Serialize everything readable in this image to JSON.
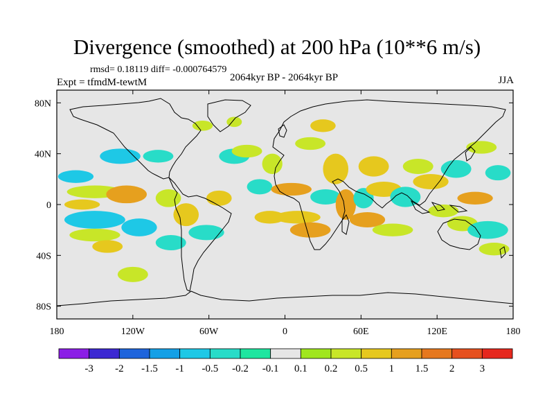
{
  "title": "Divergence (smoothed) at 200 hPa (10**6 m/s)",
  "stats": "rmsd= 0.18119 diff= -0.000764579",
  "experiment": "Expt = tfmdM-tewtM",
  "period": "2064kyr BP - 2064kyr BP",
  "season": "JJA",
  "map": {
    "projection": "cylindrical-equidistant",
    "lon_range": [
      -180,
      180
    ],
    "lat_range": [
      -90,
      90
    ],
    "background_color": "#e6e6e6",
    "x_ticks": [
      {
        "lon": -180,
        "label": "180"
      },
      {
        "lon": -120,
        "label": "120W"
      },
      {
        "lon": -60,
        "label": "60W"
      },
      {
        "lon": 0,
        "label": "0"
      },
      {
        "lon": 60,
        "label": "60E"
      },
      {
        "lon": 120,
        "label": "120E"
      },
      {
        "lon": 180,
        "label": "180"
      }
    ],
    "y_ticks": [
      {
        "lat": 80,
        "label": "80N"
      },
      {
        "lat": 40,
        "label": "40N"
      },
      {
        "lat": 0,
        "label": "0"
      },
      {
        "lat": -40,
        "label": "40S"
      },
      {
        "lat": -80,
        "label": "80S"
      }
    ]
  },
  "colorbar": {
    "colors": [
      "#8b1ee6",
      "#3c28d2",
      "#1e64dc",
      "#14a0e6",
      "#1ec8e6",
      "#28dcc8",
      "#1ee6a0",
      "#e6e6e6",
      "#a0e61e",
      "#c8e628",
      "#e6c81e",
      "#e6a01e",
      "#e6781e",
      "#e6501e",
      "#e6281e"
    ],
    "labels": [
      "-3",
      "-2",
      "-1.5",
      "-1",
      "-0.5",
      "-0.2",
      "-0.1",
      "0.1",
      "0.2",
      "0.5",
      "1",
      "1.5",
      "2",
      "3"
    ]
  },
  "blobs": [
    {
      "lon": -165,
      "lat": 22,
      "rlon": 14,
      "rlat": 5,
      "level": -1
    },
    {
      "lon": -130,
      "lat": 38,
      "rlon": 16,
      "rlat": 6,
      "level": -1
    },
    {
      "lon": -100,
      "lat": 38,
      "rlon": 12,
      "rlat": 5,
      "level": -0.5
    },
    {
      "lon": -150,
      "lat": 10,
      "rlon": 22,
      "rlat": 5,
      "level": 0.2
    },
    {
      "lon": -125,
      "lat": 8,
      "rlon": 16,
      "rlat": 7,
      "level": 1
    },
    {
      "lon": -160,
      "lat": 0,
      "rlon": 14,
      "rlat": 4,
      "level": 0.5
    },
    {
      "lon": -150,
      "lat": -12,
      "rlon": 24,
      "rlat": 7,
      "level": -1
    },
    {
      "lon": -115,
      "lat": -18,
      "rlon": 14,
      "rlat": 7,
      "level": -1
    },
    {
      "lon": -150,
      "lat": -24,
      "rlon": 20,
      "rlat": 5,
      "level": 0.2
    },
    {
      "lon": -140,
      "lat": -33,
      "rlon": 12,
      "rlat": 5,
      "level": 0.5
    },
    {
      "lon": -120,
      "lat": -55,
      "rlon": 12,
      "rlat": 6,
      "level": 0.2
    },
    {
      "lon": -92,
      "lat": 5,
      "rlon": 10,
      "rlat": 7,
      "level": 0.2
    },
    {
      "lon": -78,
      "lat": -8,
      "rlon": 10,
      "rlat": 9,
      "level": 0.5
    },
    {
      "lon": -90,
      "lat": -30,
      "rlon": 12,
      "rlat": 6,
      "level": -0.5
    },
    {
      "lon": -62,
      "lat": -22,
      "rlon": 14,
      "rlat": 6,
      "level": -0.5
    },
    {
      "lon": -52,
      "lat": 5,
      "rlon": 10,
      "rlat": 6,
      "level": 0.5
    },
    {
      "lon": -40,
      "lat": 38,
      "rlon": 12,
      "rlat": 6,
      "level": -0.5
    },
    {
      "lon": -30,
      "lat": 42,
      "rlon": 12,
      "rlat": 5,
      "level": 0.2
    },
    {
      "lon": -40,
      "lat": 65,
      "rlon": 6,
      "rlat": 4,
      "level": 0.2
    },
    {
      "lon": -20,
      "lat": 14,
      "rlon": 10,
      "rlat": 6,
      "level": -0.5
    },
    {
      "lon": -10,
      "lat": 32,
      "rlon": 8,
      "rlat": 8,
      "level": 0.2
    },
    {
      "lon": -12,
      "lat": -10,
      "rlon": 12,
      "rlat": 5,
      "level": 0.5
    },
    {
      "lon": 5,
      "lat": 12,
      "rlon": 16,
      "rlat": 5,
      "level": 1
    },
    {
      "lon": 10,
      "lat": -10,
      "rlon": 18,
      "rlat": 5,
      "level": 0.5
    },
    {
      "lon": 20,
      "lat": -20,
      "rlon": 16,
      "rlat": 6,
      "level": 1
    },
    {
      "lon": 32,
      "lat": 6,
      "rlon": 12,
      "rlat": 6,
      "level": -0.5
    },
    {
      "lon": 20,
      "lat": 48,
      "rlon": 12,
      "rlat": 5,
      "level": 0.2
    },
    {
      "lon": 40,
      "lat": 28,
      "rlon": 10,
      "rlat": 12,
      "level": 0.5
    },
    {
      "lon": 48,
      "lat": 0,
      "rlon": 8,
      "rlat": 12,
      "level": 1
    },
    {
      "lon": 62,
      "lat": 5,
      "rlon": 8,
      "rlat": 8,
      "level": -0.5
    },
    {
      "lon": 65,
      "lat": -12,
      "rlon": 14,
      "rlat": 6,
      "level": 1
    },
    {
      "lon": 70,
      "lat": 30,
      "rlon": 12,
      "rlat": 8,
      "level": 0.5
    },
    {
      "lon": 78,
      "lat": 12,
      "rlon": 14,
      "rlat": 6,
      "level": 0.5
    },
    {
      "lon": 95,
      "lat": 6,
      "rlon": 12,
      "rlat": 8,
      "level": -0.5
    },
    {
      "lon": 85,
      "lat": -20,
      "rlon": 16,
      "rlat": 5,
      "level": 0.2
    },
    {
      "lon": 105,
      "lat": 30,
      "rlon": 12,
      "rlat": 6,
      "level": 0.2
    },
    {
      "lon": 115,
      "lat": 18,
      "rlon": 14,
      "rlat": 6,
      "level": 0.5
    },
    {
      "lon": 125,
      "lat": -5,
      "rlon": 12,
      "rlat": 5,
      "level": 0.2
    },
    {
      "lon": 135,
      "lat": 28,
      "rlon": 12,
      "rlat": 7,
      "level": -0.5
    },
    {
      "lon": 150,
      "lat": 5,
      "rlon": 14,
      "rlat": 5,
      "level": 1
    },
    {
      "lon": 140,
      "lat": -15,
      "rlon": 12,
      "rlat": 6,
      "level": 0.2
    },
    {
      "lon": 160,
      "lat": -20,
      "rlon": 16,
      "rlat": 7,
      "level": -0.5
    },
    {
      "lon": 155,
      "lat": 45,
      "rlon": 12,
      "rlat": 5,
      "level": 0.2
    },
    {
      "lon": 168,
      "lat": 25,
      "rlon": 10,
      "rlat": 6,
      "level": -0.5
    },
    {
      "lon": 165,
      "lat": -35,
      "rlon": 12,
      "rlat": 5,
      "level": 0.2
    },
    {
      "lon": 30,
      "lat": 62,
      "rlon": 10,
      "rlat": 5,
      "level": 0.5
    },
    {
      "lon": -65,
      "lat": 62,
      "rlon": 8,
      "rlat": 4,
      "level": 0.2
    }
  ]
}
